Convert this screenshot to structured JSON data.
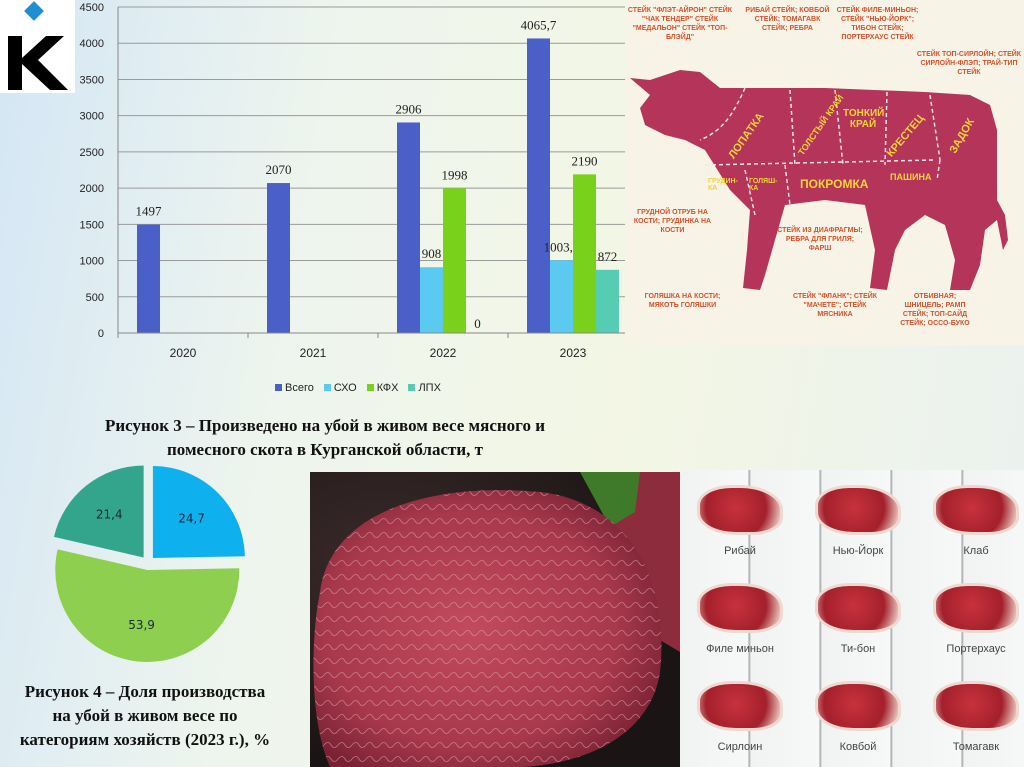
{
  "logo": {
    "letter": "K",
    "diamond_color": "#1e8fd0"
  },
  "chart_data": [
    {
      "type": "bar",
      "categories": [
        "2020",
        "2021",
        "2022",
        "2023"
      ],
      "ylim": [
        0,
        4500
      ],
      "yticks": [
        "0",
        "500",
        "1000",
        "1500",
        "2000",
        "2500",
        "3000",
        "3500",
        "4000",
        "4500"
      ],
      "grid": true,
      "legend_position": "bottom",
      "series": [
        {
          "name": "Всего",
          "color": "#4a5fc8",
          "values": [
            1497,
            2070,
            2906,
            4065.7
          ],
          "labels": [
            "1497",
            "2070",
            "2906",
            "4065,7"
          ]
        },
        {
          "name": "СХО",
          "color": "#5ccaf0",
          "values": [
            null,
            null,
            908,
            1003.7
          ],
          "labels": [
            "",
            "",
            "908",
            "1003,7"
          ]
        },
        {
          "name": "КФХ",
          "color": "#7ad11c",
          "values": [
            null,
            null,
            1998,
            2190
          ],
          "labels": [
            "",
            "",
            "1998",
            "2190"
          ]
        },
        {
          "name": "ЛПХ",
          "color": "#56cdb2",
          "values": [
            null,
            null,
            0,
            872
          ],
          "labels": [
            "",
            "",
            "0",
            "872"
          ]
        }
      ],
      "title": "Рисунок 3 – Произведено на убой в живом весе мясного и помесного скота в Курганской области, т"
    },
    {
      "type": "pie",
      "values": [
        24.7,
        53.9,
        21.4
      ],
      "labels": [
        "24,7",
        "53,9",
        "21,4"
      ],
      "colors": [
        "#0fb0ee",
        "#8ecf50",
        "#33a58c"
      ],
      "title": "Рисунок 4 – Доля производства на убой в живом весе по категориям хозяйств (2023 г.), %"
    }
  ],
  "captions": {
    "fig3_line1": "Рисунок 3 – Произведено на убой в живом весе мясного и",
    "fig3_line2": "помесного скота в Курганской области, т",
    "fig4_line1": "Рисунок 4 – Доля производства",
    "fig4_line2": "на убой в живом весе по",
    "fig4_line3": "категориям хозяйств (2023 г.), %"
  },
  "cow_image": {
    "cuts": [
      "ЛОПАТКА",
      "ТОЛСТЫЙ КРАЙ",
      "ТОНКИЙ КРАЙ",
      "КРЕСТЕЦ",
      "ЗАДОК",
      "ГРУДИН-КА",
      "ГОЛЯШ-КА",
      "ПОКРОМКА",
      "ПАШИНА"
    ],
    "notes": [
      "СТЕЙК \"ФЛЭТ-АЙРОН\" СТЕЙК \"ЧАК ТЕНДЕР\" СТЕЙК \"МЕДАЛЬОН\" СТЕЙК \"ТОП-БЛЭЙД\"",
      "РИБАЙ СТЕЙК; КОВБОЙ СТЕЙК; ТОМАГАВК СТЕЙК; РЕБРА",
      "СТЕЙК ФИЛЕ-МИНЬОН; СТЕЙК \"НЬЮ-ЙОРК\"; ТИБОН СТЕЙК; ПОРТЕРХАУС СТЕЙК",
      "СТЕЙК ТОП-СИРЛОЙН; СТЕЙК СИРЛОЙН-ФЛЭП; ТРАЙ-ТИП СТЕЙК",
      "ГРУДНОЙ ОТРУБ НА КОСТИ; ГРУДИНКА НА КОСТИ",
      "СТЕЙК ИЗ ДИАФРАГМЫ; РЕБРА ДЛЯ ГРИЛЯ; ФАРШ",
      "ГОЛЯШКА НА КОСТИ; МЯКОТЬ ГОЛЯШКИ",
      "СТЕЙК \"ФЛАНК\"; СТЕЙК \"МАЧЕТЕ\"; СТЕЙК МЯСНИКА",
      "ОТБИВНАЯ; ШНИЦЕЛЬ; РАМП СТЕЙК; ТОП-САЙД СТЕЙК; ОССО-БУКО"
    ]
  },
  "steaks": [
    "Рибай",
    "Нью-Йорк",
    "Клаб",
    "Филе миньон",
    "Ти-бон",
    "Портерхаус",
    "Сирлоин",
    "Ковбой",
    "Томагавк"
  ]
}
